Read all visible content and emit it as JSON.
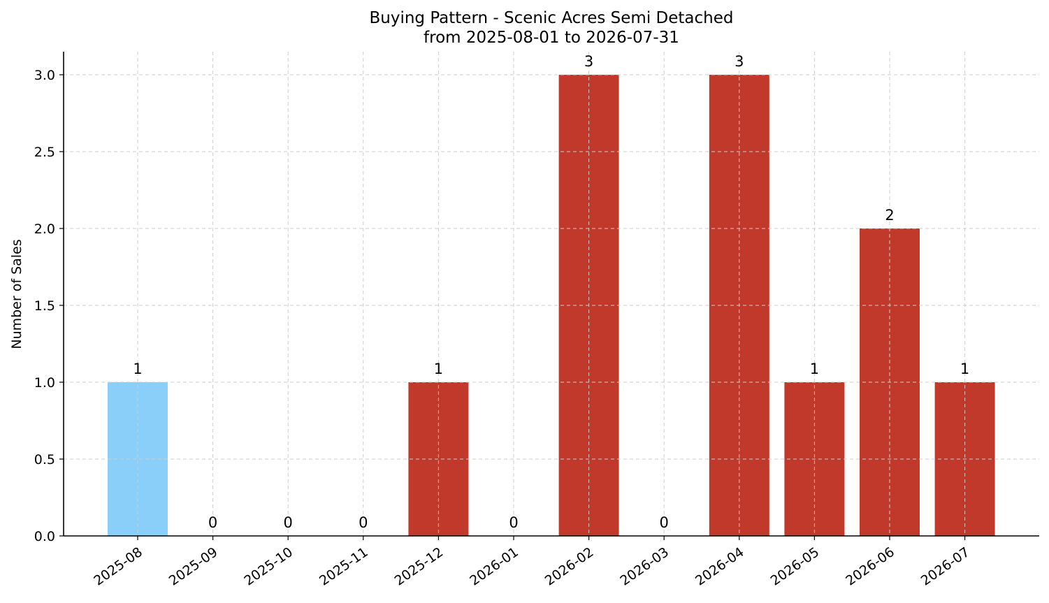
{
  "chart_data": {
    "type": "bar",
    "title_line1": "Buying Pattern - Scenic Acres Semi Detached",
    "title_line2": "from 2025-08-01 to 2026-07-31",
    "xlabel": "",
    "ylabel": "Number of Sales",
    "categories": [
      "2025-08",
      "2025-09",
      "2025-10",
      "2025-11",
      "2025-12",
      "2026-01",
      "2026-02",
      "2026-03",
      "2026-04",
      "2026-05",
      "2026-06",
      "2026-07"
    ],
    "values": [
      1,
      0,
      0,
      0,
      1,
      0,
      3,
      0,
      3,
      1,
      2,
      1
    ],
    "data_labels": [
      "1",
      "0",
      "0",
      "0",
      "1",
      "0",
      "3",
      "0",
      "3",
      "1",
      "2",
      "1"
    ],
    "bar_colors": [
      "#89cff9",
      "#c0392b",
      "#c0392b",
      "#c0392b",
      "#c0392b",
      "#c0392b",
      "#c0392b",
      "#c0392b",
      "#c0392b",
      "#c0392b",
      "#c0392b",
      "#c0392b"
    ],
    "ylim": [
      0,
      3.15
    ],
    "yticks": [
      0,
      0.5,
      1.0,
      1.5,
      2.0,
      2.5,
      3.0
    ],
    "ytick_labels": [
      "0.0",
      "0.5",
      "1.0",
      "1.5",
      "2.0",
      "2.5",
      "3.0"
    ],
    "grid": true,
    "legend": "none"
  }
}
